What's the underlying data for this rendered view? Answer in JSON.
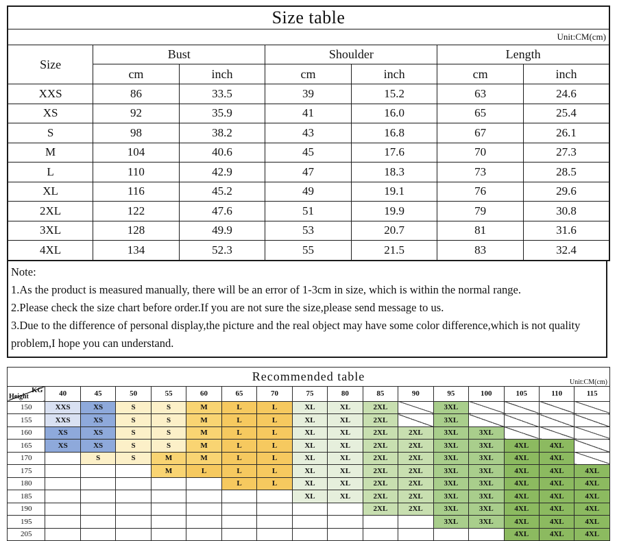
{
  "size_table": {
    "title": "Size table",
    "unit": "Unit:CM(cm)",
    "size_header": "Size",
    "groups": [
      "Bust",
      "Shoulder",
      "Length"
    ],
    "sub_headers": [
      "cm",
      "inch",
      "cm",
      "inch",
      "cm",
      "inch"
    ],
    "rows": [
      {
        "size": "XXS",
        "values": [
          "86",
          "33.5",
          "39",
          "15.2",
          "63",
          "24.6"
        ]
      },
      {
        "size": "XS",
        "values": [
          "92",
          "35.9",
          "41",
          "16.0",
          "65",
          "25.4"
        ]
      },
      {
        "size": "S",
        "values": [
          "98",
          "38.2",
          "43",
          "16.8",
          "67",
          "26.1"
        ]
      },
      {
        "size": "M",
        "values": [
          "104",
          "40.6",
          "45",
          "17.6",
          "70",
          "27.3"
        ]
      },
      {
        "size": "L",
        "values": [
          "110",
          "42.9",
          "47",
          "18.3",
          "73",
          "28.5"
        ]
      },
      {
        "size": "XL",
        "values": [
          "116",
          "45.2",
          "49",
          "19.1",
          "76",
          "29.6"
        ]
      },
      {
        "size": "2XL",
        "values": [
          "122",
          "47.6",
          "51",
          "19.9",
          "79",
          "30.8"
        ]
      },
      {
        "size": "3XL",
        "values": [
          "128",
          "49.9",
          "53",
          "20.7",
          "81",
          "31.6"
        ]
      },
      {
        "size": "4XL",
        "values": [
          "134",
          "52.3",
          "55",
          "21.5",
          "83",
          "32.4"
        ]
      }
    ]
  },
  "note": {
    "label": "Note:",
    "lines": [
      "1.As the product is measured manually, there will be an error of 1-3cm in size, which is within the normal range.",
      "2.Please check  the size chart before order.If you are not sure the size,please send message to us.",
      "3.Due to the difference of personal display,the picture and the real object may have some color difference,which is not quality problem,I hope you can understand."
    ]
  },
  "recommended_table": {
    "title": "Recommended table",
    "unit": "Unit:CM(cm)",
    "corner_top_right": "KG",
    "corner_bottom_left": "Height",
    "weight_columns": [
      "40",
      "45",
      "50",
      "55",
      "60",
      "65",
      "70",
      "75",
      "80",
      "85",
      "90",
      "95",
      "100",
      "105",
      "110",
      "115"
    ],
    "rows": [
      {
        "height": "150",
        "cells": [
          "XXS",
          "XS",
          "S",
          "S",
          "M",
          "L",
          "L",
          "XL",
          "XL",
          "2XL",
          "/",
          "3XL",
          "/",
          "/",
          "/",
          "/"
        ]
      },
      {
        "height": "155",
        "cells": [
          "XXS",
          "XS",
          "S",
          "S",
          "M",
          "L",
          "L",
          "XL",
          "XL",
          "2XL",
          "/",
          "3XL",
          "/",
          "/",
          "/",
          "/"
        ]
      },
      {
        "height": "160",
        "cells": [
          "XS",
          "XS",
          "S",
          "S",
          "M",
          "L",
          "L",
          "XL",
          "XL",
          "2XL",
          "2XL",
          "3XL",
          "3XL",
          "/",
          "/",
          "/"
        ]
      },
      {
        "height": "165",
        "cells": [
          "XS",
          "XS",
          "S",
          "S",
          "M",
          "L",
          "L",
          "XL",
          "XL",
          "2XL",
          "2XL",
          "3XL",
          "3XL",
          "4XL",
          "4XL",
          "/"
        ]
      },
      {
        "height": "170",
        "cells": [
          "",
          "S",
          "S",
          "M",
          "M",
          "L",
          "L",
          "XL",
          "XL",
          "2XL",
          "2XL",
          "3XL",
          "3XL",
          "4XL",
          "4XL",
          "/"
        ]
      },
      {
        "height": "175",
        "cells": [
          "",
          "",
          "",
          "M",
          "L",
          "L",
          "L",
          "XL",
          "XL",
          "2XL",
          "2XL",
          "3XL",
          "3XL",
          "4XL",
          "4XL",
          "4XL"
        ]
      },
      {
        "height": "180",
        "cells": [
          "",
          "",
          "",
          "",
          "",
          "L",
          "L",
          "XL",
          "XL",
          "2XL",
          "2XL",
          "3XL",
          "3XL",
          "4XL",
          "4XL",
          "4XL"
        ]
      },
      {
        "height": "185",
        "cells": [
          "",
          "",
          "",
          "",
          "",
          "",
          "",
          "XL",
          "XL",
          "2XL",
          "2XL",
          "3XL",
          "3XL",
          "4XL",
          "4XL",
          "4XL"
        ]
      },
      {
        "height": "190",
        "cells": [
          "",
          "",
          "",
          "",
          "",
          "",
          "",
          "",
          "",
          "2XL",
          "2XL",
          "3XL",
          "3XL",
          "4XL",
          "4XL",
          "4XL"
        ]
      },
      {
        "height": "195",
        "cells": [
          "",
          "",
          "",
          "",
          "",
          "",
          "",
          "",
          "",
          "",
          "",
          "3XL",
          "3XL",
          "4XL",
          "4XL",
          "4XL"
        ]
      },
      {
        "height": "205",
        "cells": [
          "",
          "",
          "",
          "",
          "",
          "",
          "",
          "",
          "",
          "",
          "",
          "",
          "",
          "4XL",
          "4XL",
          "4XL"
        ]
      }
    ]
  },
  "colors": {
    "xxs": "#D9E1F2",
    "xs": "#8EA9DB",
    "s": "#FCF0C8",
    "m": "#F9D472",
    "l": "#F6C95F",
    "xl": "#E6EFDC",
    "xxl2": "#C8DFB0",
    "xxl3": "#A9CE8C",
    "xxl4": "#8CBA60"
  }
}
